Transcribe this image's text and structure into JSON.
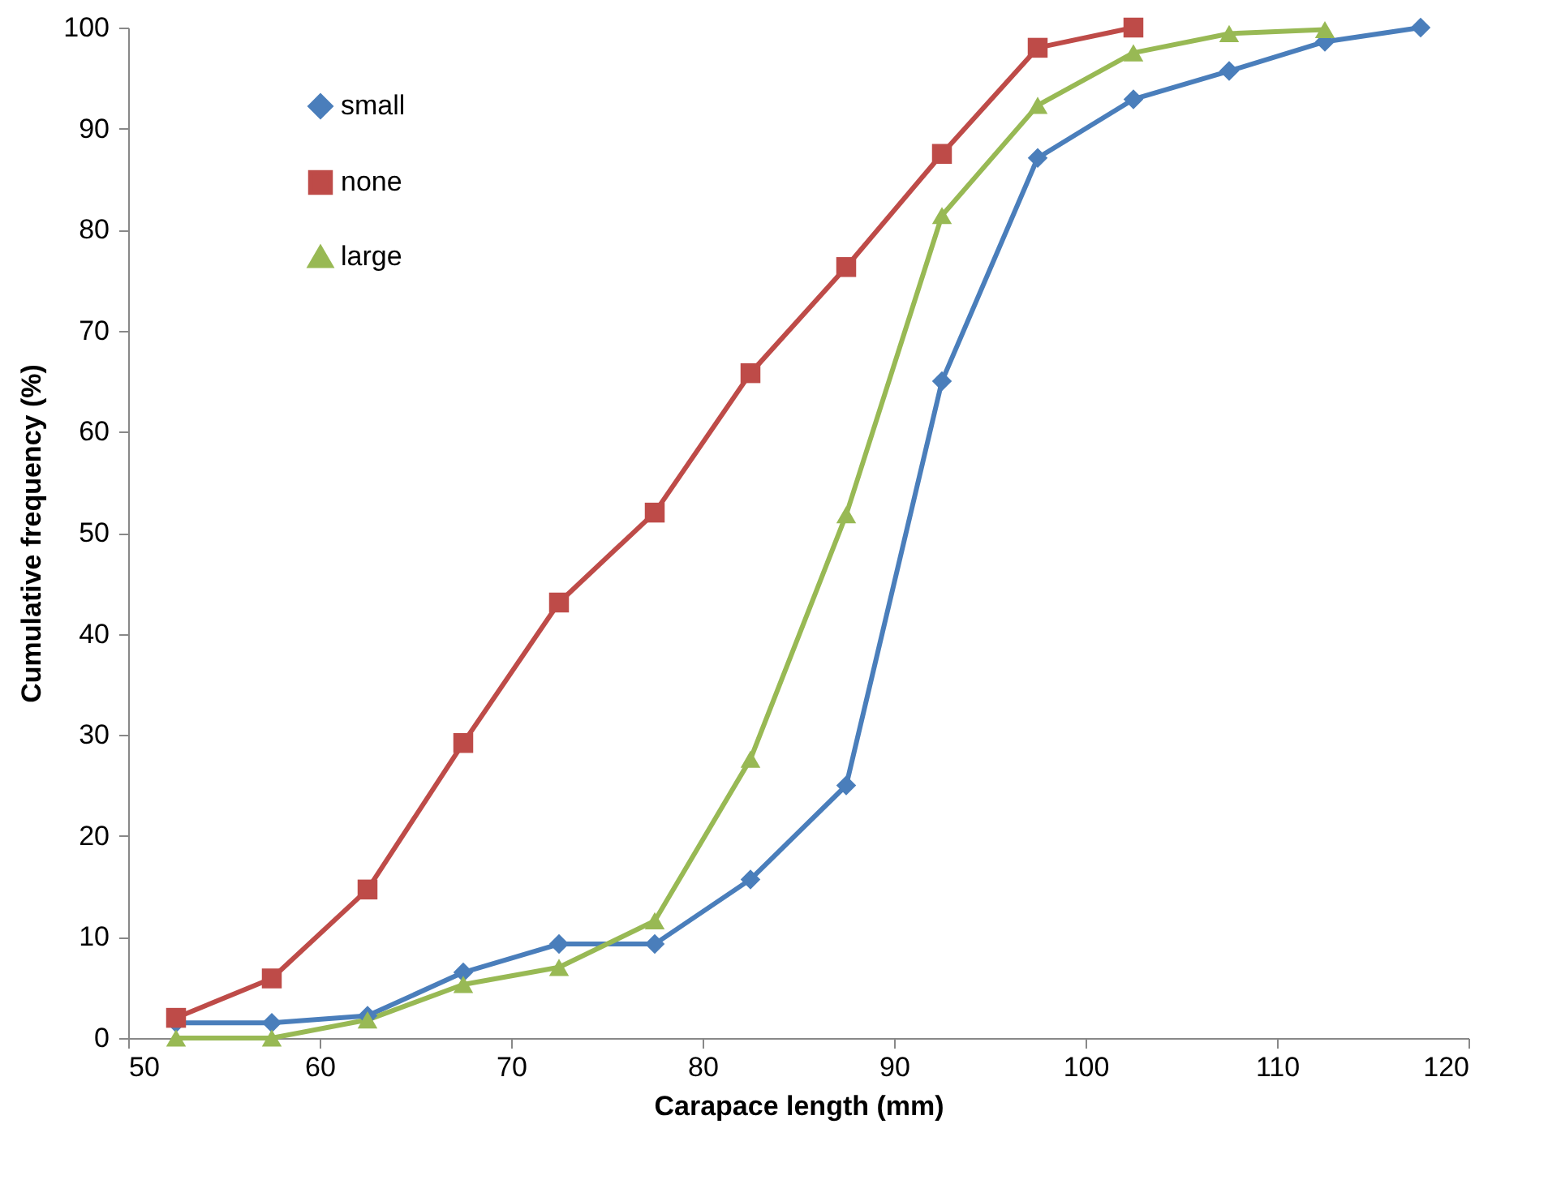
{
  "chart_data": {
    "type": "line",
    "xlabel": "Carapace length (mm)",
    "ylabel": "Cumulative frequency (%)",
    "xlim": [
      50,
      120
    ],
    "xticks": [
      50,
      60,
      70,
      80,
      90,
      100,
      110,
      120
    ],
    "ylim": [
      0,
      100
    ],
    "yticks": [
      0,
      10,
      20,
      30,
      40,
      50,
      60,
      70,
      80,
      90,
      100
    ],
    "grid": false,
    "legend": "top left",
    "line_style": "solid",
    "series": [
      {
        "name": "small",
        "color": "#4a7ebb",
        "marker": "diamond",
        "x": [
          52.5,
          57.5,
          62.5,
          67.5,
          72.5,
          77.5,
          82.5,
          87.5,
          92.5,
          97.5,
          102.5,
          107.5,
          112.5,
          117.5
        ],
        "values": [
          1.5,
          1.5,
          2.2,
          6.5,
          9.3,
          9.3,
          15.7,
          25,
          65,
          87.1,
          92.9,
          95.7,
          98.6,
          100
        ]
      },
      {
        "name": "none",
        "color": "#be4b48",
        "marker": "square",
        "x": [
          52.5,
          57.5,
          62.5,
          67.5,
          72.5,
          77.5,
          82.5,
          87.5,
          92.5,
          97.5,
          102.5
        ],
        "values": [
          2,
          5.9,
          14.7,
          29.2,
          43.1,
          52,
          65.8,
          76.3,
          87.5,
          98,
          100
        ]
      },
      {
        "name": "large",
        "color": "#98b954",
        "marker": "triangle",
        "x": [
          52.5,
          57.5,
          62.5,
          67.5,
          72.5,
          77.5,
          82.5,
          87.5,
          92.5,
          97.5,
          102.5,
          107.5,
          112.5
        ],
        "values": [
          0,
          0,
          1.8,
          5.3,
          7,
          11.6,
          27.6,
          51.8,
          81.4,
          92.3,
          97.5,
          99.4,
          99.8
        ]
      }
    ]
  }
}
